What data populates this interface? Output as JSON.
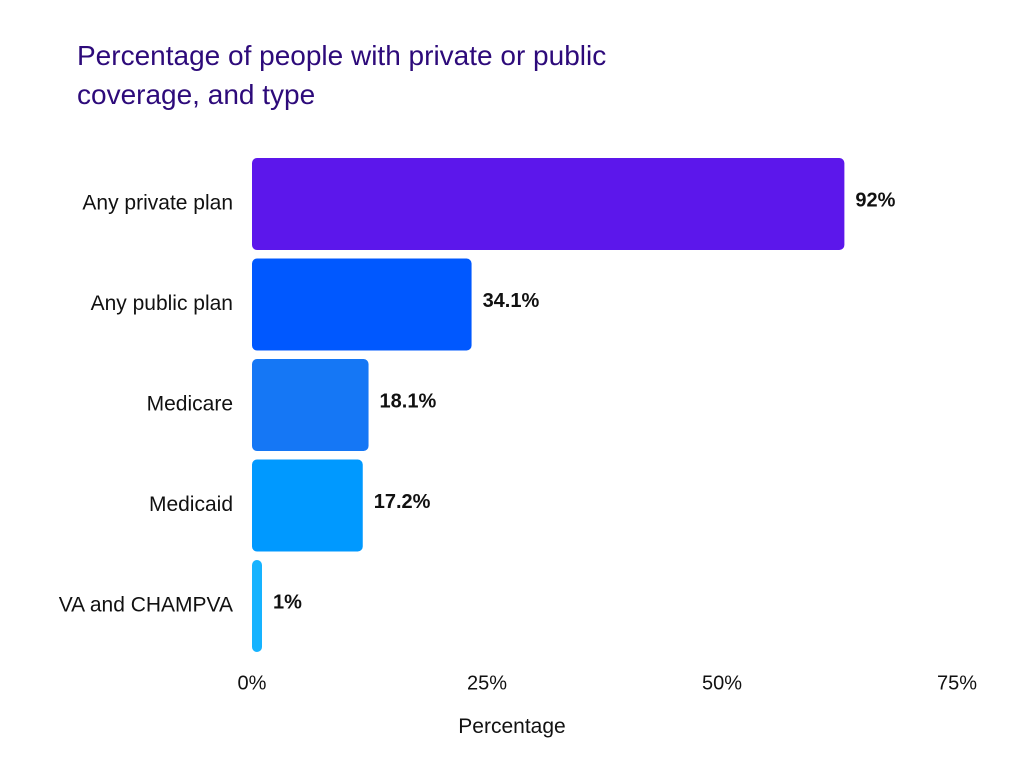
{
  "chart_data": {
    "type": "bar",
    "orientation": "horizontal",
    "title": "Percentage of people with private or public coverage, and type",
    "categories": [
      "Any private plan",
      "Any public plan",
      "Medicare",
      "Medicaid",
      "VA and CHAMPVA"
    ],
    "values": [
      92,
      34.1,
      18.1,
      17.2,
      1
    ],
    "value_labels": [
      "92%",
      "34.1%",
      "18.1%",
      "17.2%",
      "1%"
    ],
    "colors": [
      "#5c17eb",
      "#0058ff",
      "#1577f5",
      "#0099ff",
      "#16b3ff"
    ],
    "xlabel": "Percentage",
    "ylabel": "",
    "xlim": [
      0,
      75
    ],
    "xticks": [
      0,
      25,
      50,
      75
    ],
    "xtick_labels": [
      "0%",
      "25%",
      "50%",
      "75%"
    ],
    "grid": false,
    "legend": "none"
  }
}
